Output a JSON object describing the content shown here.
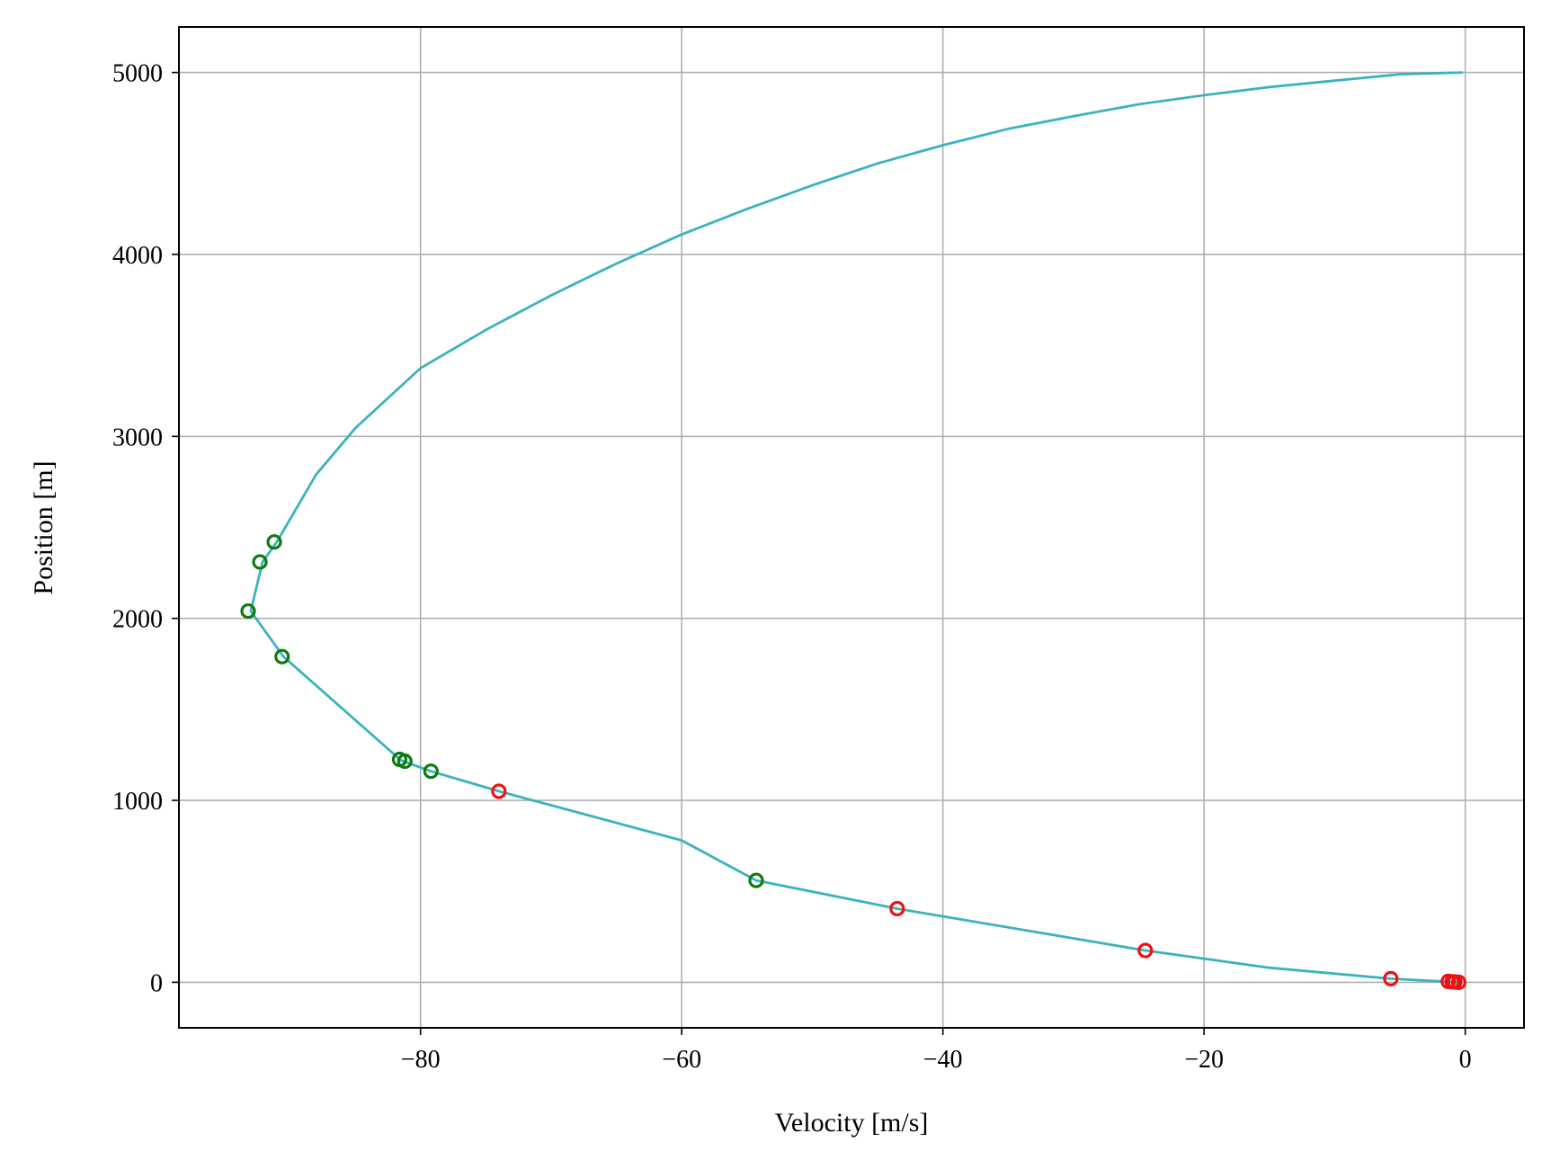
{
  "chart_data": {
    "type": "line",
    "title": "",
    "xlabel": "Velocity [m/s]",
    "ylabel": "Position [m]",
    "xlim": [
      -98.5,
      4.5
    ],
    "ylim": [
      -250,
      5250
    ],
    "xticks": [
      -80,
      -60,
      -40,
      -20,
      0
    ],
    "xtick_labels": [
      "−80",
      "−60",
      "−40",
      "−20",
      "0"
    ],
    "yticks": [
      0,
      1000,
      2000,
      3000,
      4000,
      5000
    ],
    "ytick_labels": [
      "0",
      "1000",
      "2000",
      "3000",
      "4000",
      "5000"
    ],
    "grid": true,
    "colors": {
      "line": "#3bb3bd",
      "green": "#107a10",
      "red": "#ee1111",
      "grid": "#b0b0b0"
    },
    "series": [
      {
        "style": "line",
        "color": "#3bb3bd",
        "points": [
          [
            -0.2,
            5000
          ],
          [
            -5,
            4990
          ],
          [
            -10,
            4955
          ],
          [
            -15,
            4920
          ],
          [
            -20,
            4875
          ],
          [
            -25,
            4825
          ],
          [
            -30,
            4760
          ],
          [
            -35,
            4690
          ],
          [
            -40,
            4600
          ],
          [
            -45,
            4500
          ],
          [
            -50,
            4380
          ],
          [
            -55,
            4250
          ],
          [
            -60,
            4110
          ],
          [
            -65,
            3950
          ],
          [
            -70,
            3775
          ],
          [
            -75,
            3585
          ],
          [
            -80,
            3375
          ],
          [
            -85,
            3045
          ],
          [
            -88,
            2790
          ],
          [
            -91,
            2420
          ],
          [
            -92.1,
            2310
          ],
          [
            -93,
            2040
          ],
          [
            -90.5,
            1790
          ],
          [
            -81.5,
            1220
          ],
          [
            -79.2,
            1160
          ],
          [
            -74,
            1050
          ],
          [
            -60,
            780
          ],
          [
            -54.3,
            560
          ],
          [
            -43.5,
            405
          ],
          [
            -24.5,
            175
          ],
          [
            -15,
            80
          ],
          [
            -5.7,
            20
          ],
          [
            -1.3,
            3
          ],
          [
            -0.3,
            0
          ]
        ]
      },
      {
        "style": "scatter",
        "color": "#107a10",
        "points": [
          [
            -91.2,
            2420
          ],
          [
            -92.3,
            2310
          ],
          [
            -93.2,
            2040
          ],
          [
            -90.6,
            1790
          ],
          [
            -81.6,
            1225
          ],
          [
            -81.2,
            1215
          ],
          [
            -79.2,
            1160
          ],
          [
            -54.3,
            560
          ]
        ]
      },
      {
        "style": "scatter",
        "color": "#ee1111",
        "points": [
          [
            -74.0,
            1050
          ],
          [
            -43.5,
            405
          ],
          [
            -24.5,
            175
          ],
          [
            -5.7,
            20
          ],
          [
            -1.3,
            5
          ],
          [
            -1.0,
            3
          ],
          [
            -0.8,
            2
          ],
          [
            -0.5,
            0
          ]
        ]
      }
    ]
  }
}
